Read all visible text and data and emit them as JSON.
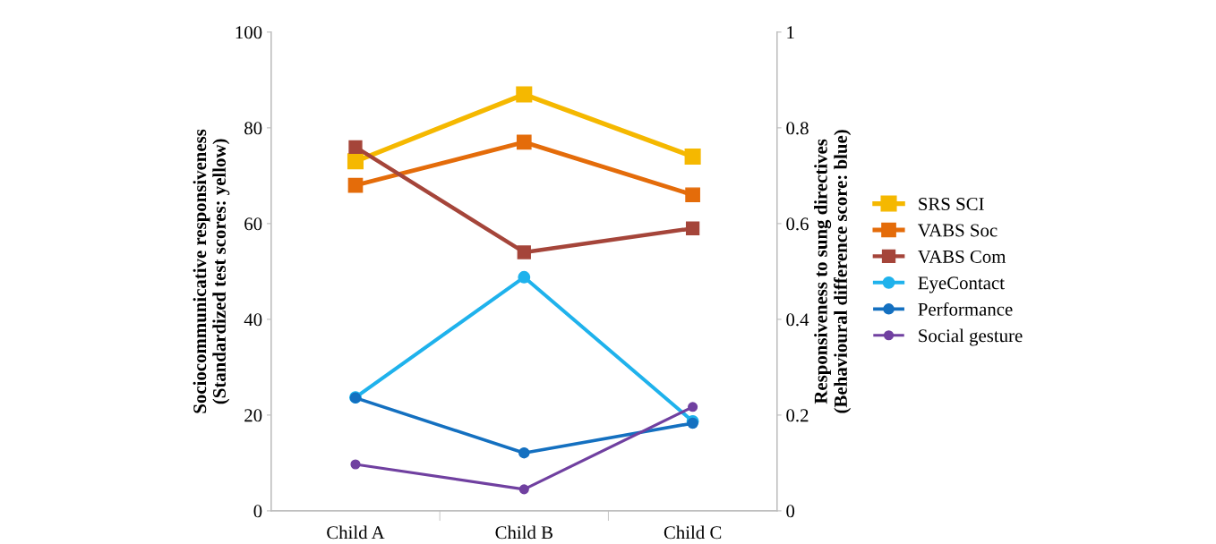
{
  "chart_data": {
    "type": "line",
    "ylabel": "Sociocommunicative responsiveness\n(Standardized test scores: yellow)",
    "y2label": "Responsiveness to sung directives\n(Behavioural difference score: blue)",
    "categories": [
      "Child A",
      "Child B",
      "Child C"
    ],
    "ylim": [
      0,
      100
    ],
    "yticks": [
      0,
      20,
      40,
      60,
      80,
      100
    ],
    "y2lim": [
      0,
      1
    ],
    "y2ticks": [
      0,
      0.2,
      0.4,
      0.6,
      0.8,
      1
    ],
    "grid": false,
    "legend": "right",
    "line_style": "solid",
    "series": [
      {
        "name": "SRS SCI",
        "color": "#f5b800",
        "marker": "square",
        "values": [
          73,
          87,
          74
        ]
      },
      {
        "name": "VABS Soc",
        "color": "#e46c0a",
        "marker": "square",
        "values": [
          68,
          77,
          66
        ]
      },
      {
        "name": "VABS Com",
        "color": "#a5453a",
        "marker": "square",
        "values": [
          76,
          54,
          59
        ]
      },
      {
        "name": "EyeContact",
        "color": "#1fb2ec",
        "marker": "circle",
        "axis": "y2",
        "values": [
          0.237,
          0.488,
          0.187
        ]
      },
      {
        "name": "Performance",
        "color": "#1470c0",
        "marker": "circle",
        "axis": "y2",
        "values": [
          0.236,
          0.121,
          0.183
        ]
      },
      {
        "name": "Social gesture",
        "color": "#7040a0",
        "marker": "circle",
        "axis": "y2",
        "values": [
          0.097,
          0.045,
          0.217
        ]
      }
    ]
  }
}
